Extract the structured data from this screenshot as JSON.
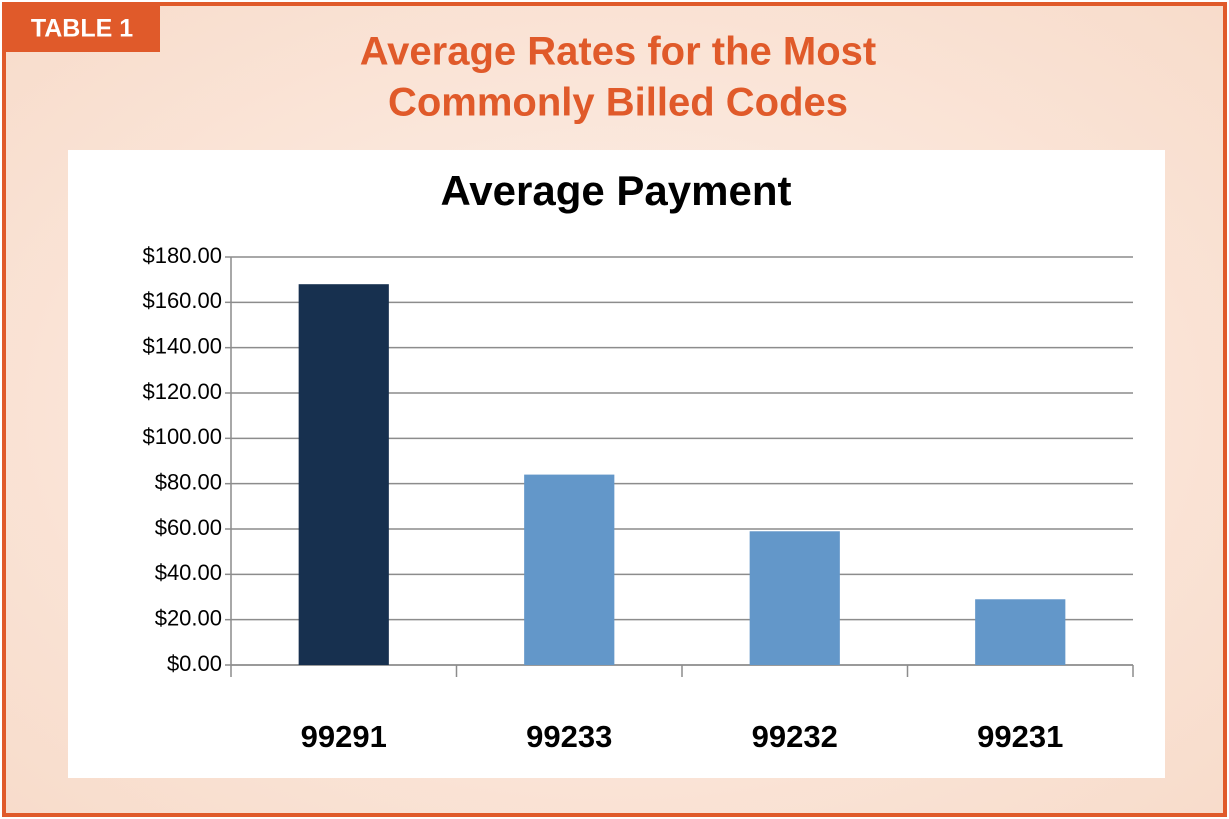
{
  "label": "TABLE 1",
  "heading": [
    "Average Rates for the Most",
    "Commonly Billed Codes"
  ],
  "chart_data": {
    "type": "bar",
    "title": "Average Payment",
    "categories": [
      "99291",
      "99233",
      "99232",
      "99231"
    ],
    "values": [
      168,
      84,
      59,
      29
    ],
    "colors": [
      "#17304f",
      "#6397c9",
      "#6397c9",
      "#6397c9"
    ],
    "ylim": [
      0,
      180
    ],
    "yticks": [
      {
        "value": 0,
        "label": "$0.00"
      },
      {
        "value": 20,
        "label": "$20.00"
      },
      {
        "value": 40,
        "label": "$40.00"
      },
      {
        "value": 60,
        "label": "$60.00"
      },
      {
        "value": 80,
        "label": "$80.00"
      },
      {
        "value": 100,
        "label": "$100.00"
      },
      {
        "value": 120,
        "label": "$120.00"
      },
      {
        "value": 140,
        "label": "$140.00"
      },
      {
        "value": 160,
        "label": "$160.00"
      },
      {
        "value": 180,
        "label": "$180.00"
      }
    ],
    "grid": true
  }
}
